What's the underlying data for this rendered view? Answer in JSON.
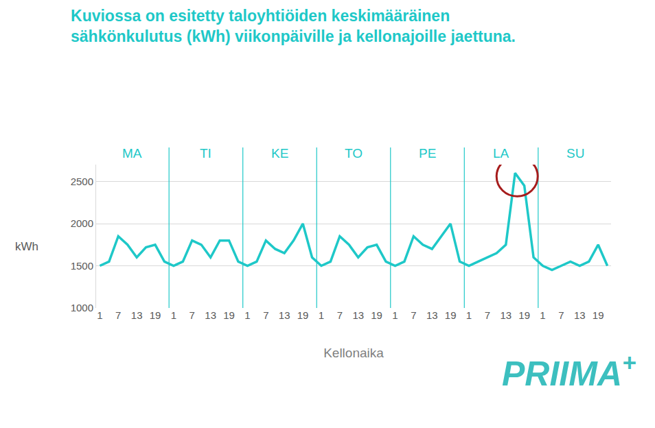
{
  "chart_data": {
    "type": "line",
    "title": [
      "Kuviossa on esitetty taloyhtiöiden keskimääräinen",
      "sähkönkulutus (kWh) viikonpäiville ja kellonajoille jaettuna."
    ],
    "x_label": "Kellonaika",
    "y_label": "kWh",
    "day_labels": [
      "MA",
      "TI",
      "KE",
      "TO",
      "PE",
      "LA",
      "SU"
    ],
    "categories": [
      "1",
      null,
      "7",
      null,
      "13",
      null,
      "19",
      null,
      "1",
      null,
      "7",
      null,
      "13",
      null,
      "19",
      null,
      "1",
      null,
      "7",
      null,
      "13",
      null,
      "19",
      null,
      "1",
      null,
      "7",
      null,
      "13",
      null,
      "19",
      null,
      "1",
      null,
      "7",
      null,
      "13",
      null,
      "19",
      null,
      "1",
      null,
      "7",
      null,
      "13",
      null,
      "19",
      null,
      "1",
      null,
      "7",
      null,
      "13",
      null,
      "19",
      null
    ],
    "values": [
      1500,
      1550,
      1850,
      1750,
      1600,
      1720,
      1750,
      1550,
      1500,
      1550,
      1800,
      1750,
      1600,
      1800,
      1800,
      1550,
      1500,
      1550,
      1800,
      1700,
      1650,
      1800,
      2000,
      1600,
      1500,
      1550,
      1850,
      1750,
      1600,
      1720,
      1750,
      1550,
      1500,
      1550,
      1850,
      1750,
      1700,
      1850,
      2000,
      1550,
      1500,
      1550,
      1600,
      1650,
      1750,
      2600,
      2450,
      1600,
      1500,
      1450,
      1500,
      1550,
      1500,
      1550,
      1750,
      1500
    ],
    "color": "#1ec8c8",
    "ylim": [
      1000,
      2700
    ],
    "yticks": [
      1000,
      1500,
      2000,
      2500
    ],
    "grid": true,
    "logo": "PRIIMA+"
  }
}
